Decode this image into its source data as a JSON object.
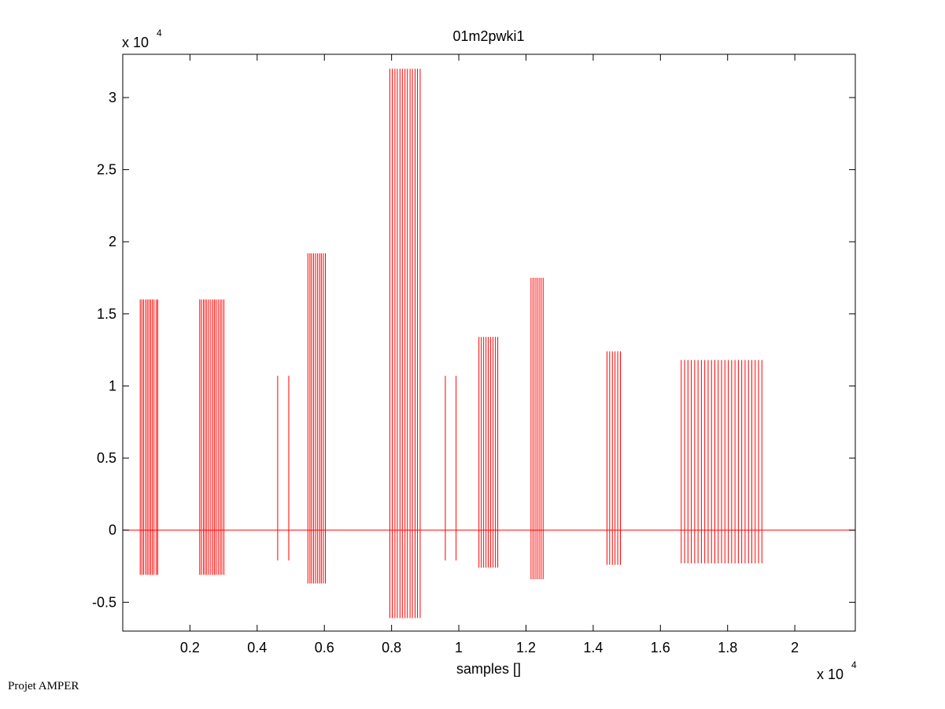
{
  "chart_data": {
    "type": "line",
    "title": "01m2pwki1",
    "xlabel": "samples []",
    "ylabel": "",
    "x_exponent_label": "x 10",
    "x_exponent": "4",
    "y_exponent_label": "x 10",
    "y_exponent": "4",
    "xlim": [
      0,
      2.18
    ],
    "ylim": [
      -0.7,
      3.3
    ],
    "x_ticks": [
      0.2,
      0.4,
      0.6,
      0.8,
      1,
      1.2,
      1.4,
      1.6,
      1.8,
      2
    ],
    "x_tick_labels": [
      "0.2",
      "0.4",
      "0.6",
      "0.8",
      "1",
      "1.2",
      "1.4",
      "1.6",
      "1.8",
      "2"
    ],
    "y_ticks": [
      -0.5,
      0,
      0.5,
      1,
      1.5,
      2,
      2.5,
      3
    ],
    "y_tick_labels": [
      "-0.5",
      "0",
      "0.5",
      "1",
      "1.5",
      "2",
      "2.5",
      "3"
    ],
    "grid": false,
    "series_color": "#ff0000",
    "baseline": 0,
    "bursts": [
      {
        "x": [
          0.052,
          0.057,
          0.062,
          0.068,
          0.073,
          0.078,
          0.083,
          0.088,
          0.093,
          0.1,
          0.104
        ],
        "high": 1.6,
        "low": -0.31
      },
      {
        "x": [
          0.229,
          0.234,
          0.24,
          0.245,
          0.25,
          0.256,
          0.262,
          0.268,
          0.273,
          0.278,
          0.284,
          0.29,
          0.295,
          0.301
        ],
        "high": 1.6,
        "low": -0.31
      },
      {
        "x": [
          0.461,
          0.494
        ],
        "high": 1.07,
        "low": -0.21
      },
      {
        "x": [
          0.551,
          0.557,
          0.562,
          0.568,
          0.574,
          0.58,
          0.586,
          0.591,
          0.597,
          0.603
        ],
        "high": 1.92,
        "low": -0.37
      },
      {
        "x": [
          0.795,
          0.802,
          0.81,
          0.817,
          0.825,
          0.832,
          0.84,
          0.847,
          0.855,
          0.862,
          0.87,
          0.877,
          0.885
        ],
        "high": 3.2,
        "low": -0.61
      },
      {
        "x": [
          0.96,
          0.992
        ],
        "high": 1.07,
        "low": -0.21
      },
      {
        "x": [
          1.06,
          1.067,
          1.074,
          1.081,
          1.088,
          1.095,
          1.102,
          1.109,
          1.116
        ],
        "high": 1.34,
        "low": -0.26
      },
      {
        "x": [
          1.215,
          1.221,
          1.227,
          1.233,
          1.239,
          1.245,
          1.251
        ],
        "high": 1.75,
        "low": -0.34
      },
      {
        "x": [
          1.441,
          1.449,
          1.457,
          1.465,
          1.473,
          1.481
        ],
        "high": 1.24,
        "low": -0.24
      },
      {
        "x": [
          1.662,
          1.672,
          1.682,
          1.692,
          1.702,
          1.712,
          1.722,
          1.732,
          1.742,
          1.752,
          1.762,
          1.772,
          1.782,
          1.792,
          1.802,
          1.812,
          1.822,
          1.832,
          1.842,
          1.852,
          1.862,
          1.872,
          1.882,
          1.892,
          1.902
        ],
        "high": 1.18,
        "low": -0.23
      }
    ]
  },
  "footer": {
    "credit": "Projet AMPER"
  }
}
